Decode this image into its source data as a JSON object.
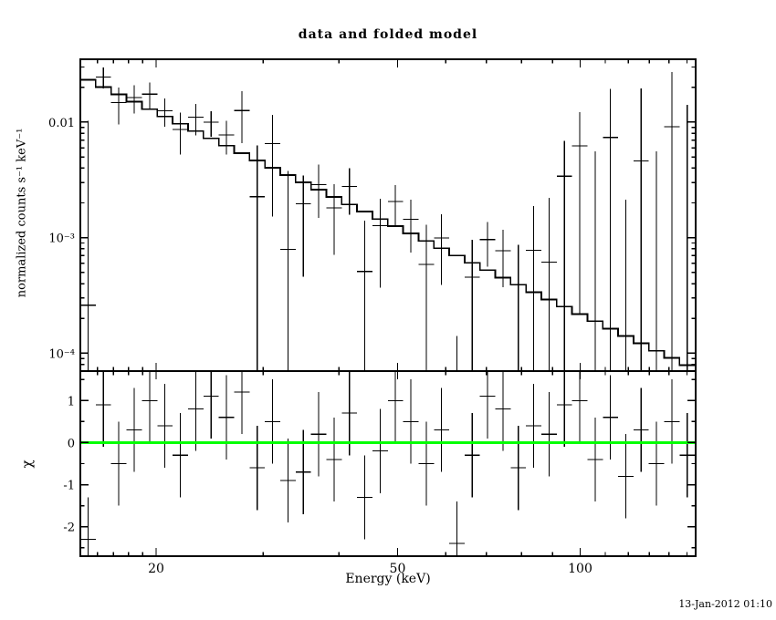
{
  "timestamp": "13-Jan-2012 01:10",
  "chart_data": {
    "type": "line",
    "title": "data and folded model",
    "xlabel": "Energy (keV)",
    "ylabel_top": "normalized counts s⁻¹ keV⁻¹",
    "ylabel_bottom": "χ",
    "x_scale": "log",
    "y_scale_top": "log",
    "y_scale_bottom": "linear",
    "xlim": [
      15,
      155
    ],
    "ylim_top": [
      7e-05,
      0.035
    ],
    "ylim_bottom": [
      -2.7,
      1.7
    ],
    "grid": false,
    "legend": "none",
    "x_major_ticks": [
      20,
      50,
      100
    ],
    "x_tick_labels": [
      "20",
      "50",
      "100"
    ],
    "x_minor_ticks": [
      16,
      17,
      18,
      19,
      30,
      40,
      60,
      70,
      80,
      90,
      110,
      120,
      130,
      140,
      150
    ],
    "y_major_ticks_top": [
      0.01,
      0.001,
      0.0001
    ],
    "y_tick_labels_top": [
      "0.01",
      "10⁻³",
      "10⁻⁴"
    ],
    "y_minor_ticks_top": [
      8e-05,
      9e-05,
      0.0002,
      0.0003,
      0.0004,
      0.0005,
      0.0006,
      0.0007,
      0.0008,
      0.0009,
      0.002,
      0.003,
      0.004,
      0.005,
      0.006,
      0.007,
      0.008,
      0.009,
      0.02,
      0.03
    ],
    "y_major_ticks_bottom": [
      1,
      0,
      -1,
      -2
    ],
    "y_tick_labels_bottom": [
      "1",
      "0",
      "-1",
      "-2"
    ],
    "y_minor_ticks_bottom": [
      -2.5,
      -1.5,
      -0.5,
      0.5,
      1.5
    ],
    "zero_line_color": "#00ff00",
    "series": [
      {
        "name": "folded model",
        "style": "step-histogram",
        "color": "#000000"
      },
      {
        "name": "data",
        "style": "cross-errorbar",
        "color": "#000000"
      },
      {
        "name": "chi residuals",
        "style": "cross-errorbar",
        "color": "#000000"
      }
    ],
    "bin_edges": [
      15.0,
      15.9,
      16.86,
      17.87,
      18.95,
      20.09,
      21.29,
      22.57,
      23.93,
      25.37,
      26.89,
      28.51,
      30.22,
      32.04,
      33.96,
      36.0,
      38.16,
      40.45,
      42.88,
      45.45,
      48.18,
      51.07,
      54.14,
      57.39,
      60.83,
      64.48,
      68.35,
      72.45,
      76.8,
      81.41,
      86.29,
      91.47,
      96.96,
      102.78,
      108.95,
      115.48,
      122.41,
      129.76,
      137.54,
      145.8,
      154.55
    ],
    "model": [
      0.02326,
      0.02009,
      0.01735,
      0.015,
      0.01296,
      0.0112,
      0.00967,
      0.00837,
      0.00723,
      0.00625,
      0.0054,
      0.00466,
      0.00403,
      0.00349,
      0.00301,
      0.0026,
      0.00225,
      0.00194,
      0.00168,
      0.00145,
      0.00126,
      0.00109,
      0.000938,
      0.000811,
      0.000701,
      0.000606,
      0.000523,
      0.000452,
      0.000391,
      0.000338,
      0.000292,
      0.000253,
      0.000218,
      0.000189,
      0.000163,
      0.000141,
      0.000122,
      0.000105,
      9.1e-05,
      7.87e-05
    ],
    "data": {
      "y": [
        0.00026,
        0.02459,
        0.01475,
        0.01635,
        0.01746,
        0.01256,
        0.00865,
        0.01101,
        0.00998,
        0.00775,
        0.0126,
        0.00226,
        0.00653,
        0.00079,
        0.00196,
        0.00288,
        0.00181,
        0.00278,
        0.00051,
        0.00127,
        0.00206,
        0.00144,
        0.000588,
        0.000991,
        -0.000259,
        0.000456,
        0.000963,
        0.000772,
        -0.000329,
        0.000778,
        0.000612,
        0.003403,
        0.006218,
        -0.003411,
        0.007363,
        -0.007859,
        0.004622,
        -0.005395,
        0.009091,
        -0.005921
      ],
      "yerr": [
        0.01,
        0.005,
        0.0052,
        0.0045,
        0.0045,
        0.0034,
        0.0034,
        0.0033,
        0.0025,
        0.0025,
        0.006,
        0.004,
        0.005,
        0.003,
        0.0015,
        0.0014,
        0.0011,
        0.0012,
        0.0009,
        0.0009,
        0.0008,
        0.0007,
        0.0007,
        0.0006,
        0.0004,
        0.0005,
        0.0004,
        0.0004,
        0.0012,
        0.0011,
        0.0016,
        0.0035,
        0.006,
        0.009,
        0.012,
        0.01,
        0.015,
        0.011,
        0.018,
        0.02
      ]
    },
    "residuals": {
      "chi": [
        -2.3,
        0.9,
        -0.5,
        0.3,
        1.0,
        0.4,
        -0.3,
        0.8,
        1.1,
        0.6,
        1.2,
        -0.6,
        0.5,
        -0.9,
        -0.7,
        0.2,
        -0.4,
        0.7,
        -1.3,
        -0.2,
        1.0,
        0.5,
        -0.5,
        0.3,
        -2.4,
        -0.3,
        1.1,
        0.8,
        -0.6,
        0.4,
        0.2,
        0.9,
        1.0,
        -0.4,
        0.6,
        -0.8,
        0.3,
        -0.5,
        0.5,
        -0.3
      ],
      "err": 1.0
    }
  }
}
